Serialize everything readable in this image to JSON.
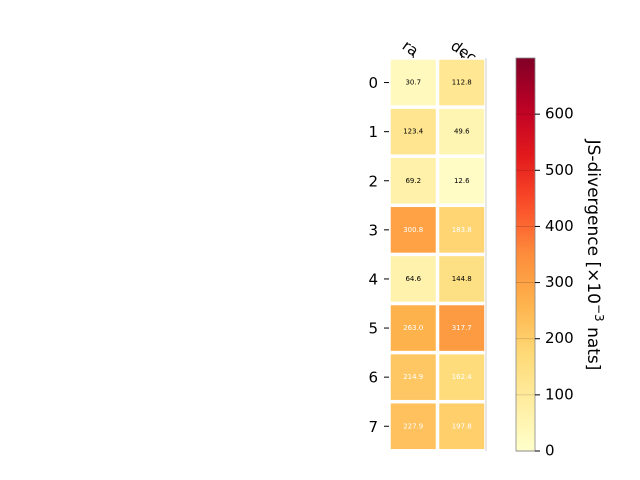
{
  "chart_data": {
    "type": "heatmap",
    "columns": [
      "ra",
      "dec"
    ],
    "rows": [
      "0",
      "1",
      "2",
      "3",
      "4",
      "5",
      "6",
      "7"
    ],
    "values": [
      [
        30.7,
        112.8
      ],
      [
        123.4,
        49.6
      ],
      [
        69.2,
        12.6
      ],
      [
        300.8,
        183.8
      ],
      [
        64.6,
        144.8
      ],
      [
        263.0,
        317.7
      ],
      [
        214.9,
        162.4
      ],
      [
        227.9,
        197.8
      ]
    ],
    "colorbar": {
      "label_prefix": "JS-divergence [×10",
      "label_exponent": "−3",
      "label_suffix": " nats]",
      "range": [
        0,
        700
      ],
      "ticks": [
        "0",
        "100",
        "200",
        "300",
        "400",
        "500",
        "600"
      ],
      "colormap": "YlOrRd"
    },
    "colors": {
      "cmap_stops": [
        "#ffffcc",
        "#ffeda0",
        "#fed976",
        "#feb24c",
        "#fd8d3c",
        "#fc4e2a",
        "#e31a1c",
        "#bd0026",
        "#800026"
      ],
      "text_dark": "#000000",
      "text_light": "#ffffff"
    }
  }
}
